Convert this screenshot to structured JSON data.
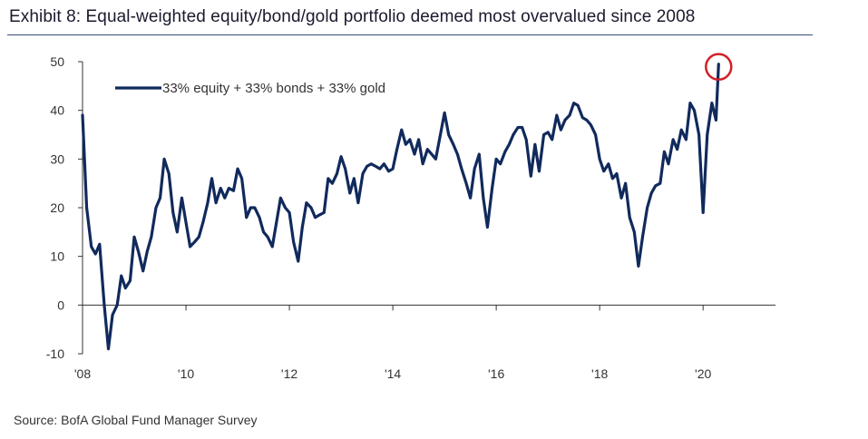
{
  "title": "Exhibit 8: Equal-weighted equity/bond/gold portfolio deemed most overvalued since 2008",
  "source": "Source: BofA Global Fund Manager Survey",
  "colors": {
    "line": "#112a5c",
    "axis": "#333333",
    "highlight": "#d21f26",
    "rule": "#3b4e7a"
  },
  "chart_data": {
    "type": "line",
    "title": "Exhibit 8: Equal-weighted equity/bond/gold portfolio deemed most overvalued since 2008",
    "xlabel": "",
    "ylabel": "",
    "ylim": [
      -10,
      50
    ],
    "xlim": [
      2008.0,
      2021.4
    ],
    "grid": false,
    "legend_position": "top-left",
    "y_ticks": [
      {
        "value": 50,
        "label": "50"
      },
      {
        "value": 40,
        "label": "40"
      },
      {
        "value": 30,
        "label": "30"
      },
      {
        "value": 20,
        "label": "20"
      },
      {
        "value": 10,
        "label": "10"
      },
      {
        "value": 0,
        "label": "0"
      },
      {
        "value": -10,
        "label": "-10"
      }
    ],
    "x_ticks": [
      {
        "value": 2008,
        "label": "'08"
      },
      {
        "value": 2010,
        "label": "'10"
      },
      {
        "value": 2012,
        "label": "'12"
      },
      {
        "value": 2014,
        "label": "'14"
      },
      {
        "value": 2016,
        "label": "'16"
      },
      {
        "value": 2018,
        "label": "'18"
      },
      {
        "value": 2020,
        "label": "'20"
      }
    ],
    "highlight": {
      "x": 2020.3,
      "y": 49.5,
      "note": "latest reading circled"
    },
    "series": [
      {
        "name": "33% equity + 33% bonds + 33% gold",
        "points": [
          [
            2008.0,
            39
          ],
          [
            2008.08,
            20
          ],
          [
            2008.17,
            12
          ],
          [
            2008.25,
            10.5
          ],
          [
            2008.33,
            12.5
          ],
          [
            2008.42,
            0
          ],
          [
            2008.5,
            -9
          ],
          [
            2008.58,
            -2
          ],
          [
            2008.67,
            0
          ],
          [
            2008.75,
            6
          ],
          [
            2008.83,
            3.5
          ],
          [
            2008.92,
            5
          ],
          [
            2009.0,
            14
          ],
          [
            2009.08,
            11
          ],
          [
            2009.17,
            7
          ],
          [
            2009.25,
            11
          ],
          [
            2009.33,
            14
          ],
          [
            2009.42,
            20
          ],
          [
            2009.5,
            22
          ],
          [
            2009.58,
            30
          ],
          [
            2009.67,
            27
          ],
          [
            2009.75,
            19
          ],
          [
            2009.83,
            15
          ],
          [
            2009.92,
            22
          ],
          [
            2010.0,
            17
          ],
          [
            2010.08,
            12
          ],
          [
            2010.17,
            13
          ],
          [
            2010.25,
            14
          ],
          [
            2010.33,
            17
          ],
          [
            2010.42,
            21
          ],
          [
            2010.5,
            26
          ],
          [
            2010.58,
            21
          ],
          [
            2010.67,
            24
          ],
          [
            2010.75,
            22
          ],
          [
            2010.83,
            24
          ],
          [
            2010.92,
            23.5
          ],
          [
            2011.0,
            28
          ],
          [
            2011.08,
            26
          ],
          [
            2011.17,
            18
          ],
          [
            2011.25,
            20
          ],
          [
            2011.33,
            20
          ],
          [
            2011.42,
            18
          ],
          [
            2011.5,
            15
          ],
          [
            2011.58,
            14
          ],
          [
            2011.67,
            12
          ],
          [
            2011.75,
            17
          ],
          [
            2011.83,
            22
          ],
          [
            2011.92,
            20
          ],
          [
            2012.0,
            19
          ],
          [
            2012.08,
            13
          ],
          [
            2012.17,
            9
          ],
          [
            2012.25,
            16
          ],
          [
            2012.33,
            21
          ],
          [
            2012.42,
            20
          ],
          [
            2012.5,
            18
          ],
          [
            2012.58,
            18.5
          ],
          [
            2012.67,
            19
          ],
          [
            2012.75,
            26
          ],
          [
            2012.83,
            25
          ],
          [
            2012.92,
            27
          ],
          [
            2013.0,
            30.5
          ],
          [
            2013.08,
            28
          ],
          [
            2013.17,
            23
          ],
          [
            2013.25,
            26
          ],
          [
            2013.33,
            21
          ],
          [
            2013.42,
            27
          ],
          [
            2013.5,
            28.5
          ],
          [
            2013.58,
            29
          ],
          [
            2013.67,
            28.5
          ],
          [
            2013.75,
            28
          ],
          [
            2013.83,
            29
          ],
          [
            2013.92,
            27.5
          ],
          [
            2014.0,
            28
          ],
          [
            2014.08,
            32
          ],
          [
            2014.17,
            36
          ],
          [
            2014.25,
            33
          ],
          [
            2014.33,
            34
          ],
          [
            2014.42,
            31
          ],
          [
            2014.5,
            34
          ],
          [
            2014.58,
            29
          ],
          [
            2014.67,
            32
          ],
          [
            2014.75,
            31
          ],
          [
            2014.83,
            30
          ],
          [
            2014.92,
            35
          ],
          [
            2015.0,
            39.5
          ],
          [
            2015.08,
            35
          ],
          [
            2015.17,
            33
          ],
          [
            2015.25,
            31
          ],
          [
            2015.33,
            28
          ],
          [
            2015.42,
            25
          ],
          [
            2015.5,
            22
          ],
          [
            2015.58,
            28
          ],
          [
            2015.67,
            31
          ],
          [
            2015.75,
            22
          ],
          [
            2015.83,
            16
          ],
          [
            2015.92,
            24
          ],
          [
            2016.0,
            30
          ],
          [
            2016.08,
            29
          ],
          [
            2016.17,
            31.5
          ],
          [
            2016.25,
            33
          ],
          [
            2016.33,
            35
          ],
          [
            2016.42,
            36.5
          ],
          [
            2016.5,
            36.5
          ],
          [
            2016.58,
            34
          ],
          [
            2016.67,
            26.5
          ],
          [
            2016.75,
            33
          ],
          [
            2016.83,
            27.5
          ],
          [
            2016.92,
            35
          ],
          [
            2017.0,
            35.5
          ],
          [
            2017.08,
            34
          ],
          [
            2017.17,
            39
          ],
          [
            2017.25,
            36
          ],
          [
            2017.33,
            38
          ],
          [
            2017.42,
            39
          ],
          [
            2017.5,
            41.5
          ],
          [
            2017.58,
            41
          ],
          [
            2017.67,
            38.5
          ],
          [
            2017.75,
            38
          ],
          [
            2017.83,
            37
          ],
          [
            2017.92,
            35
          ],
          [
            2018.0,
            30
          ],
          [
            2018.08,
            27.5
          ],
          [
            2018.17,
            29
          ],
          [
            2018.25,
            26
          ],
          [
            2018.33,
            27
          ],
          [
            2018.42,
            22
          ],
          [
            2018.5,
            25
          ],
          [
            2018.58,
            18
          ],
          [
            2018.67,
            15
          ],
          [
            2018.75,
            8
          ],
          [
            2018.83,
            14
          ],
          [
            2018.92,
            20
          ],
          [
            2019.0,
            23
          ],
          [
            2019.08,
            24.5
          ],
          [
            2019.17,
            25
          ],
          [
            2019.25,
            31.5
          ],
          [
            2019.33,
            29
          ],
          [
            2019.42,
            34
          ],
          [
            2019.5,
            32
          ],
          [
            2019.58,
            36
          ],
          [
            2019.67,
            34
          ],
          [
            2019.75,
            41.5
          ],
          [
            2019.83,
            40
          ],
          [
            2019.92,
            35
          ],
          [
            2020.0,
            19
          ],
          [
            2020.08,
            35
          ],
          [
            2020.17,
            41.5
          ],
          [
            2020.25,
            38
          ],
          [
            2020.3,
            49.5
          ]
        ]
      }
    ]
  }
}
